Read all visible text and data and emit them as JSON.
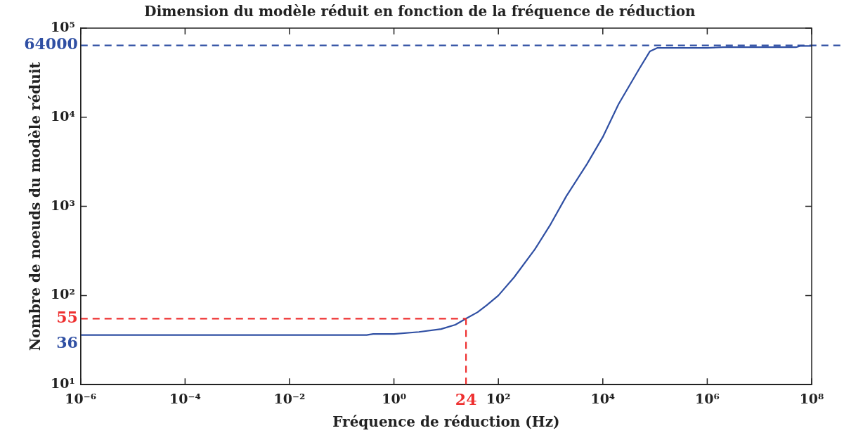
{
  "chart_data": {
    "type": "line",
    "title": "Dimension du modèle réduit en fonction de la fréquence de réduction",
    "xlabel": "Fréquence de réduction (Hz)",
    "ylabel": "Nombre de noeuds du modèle réduit",
    "log": "xy",
    "grid": false,
    "legend": false,
    "marker": "none",
    "line_style": "solid",
    "xlim": [
      1e-06,
      100000000.0
    ],
    "ylim": [
      10,
      100000
    ],
    "xticks": [
      {
        "value": 1e-06,
        "label": "10⁻⁶"
      },
      {
        "value": 0.0001,
        "label": "10⁻⁴"
      },
      {
        "value": 0.01,
        "label": "10⁻²"
      },
      {
        "value": 1,
        "label": "10⁰"
      },
      {
        "value": 100,
        "label": "10²"
      },
      {
        "value": 10000,
        "label": "10⁴"
      },
      {
        "value": 1000000,
        "label": "10⁶"
      },
      {
        "value": 100000000,
        "label": "10⁸"
      }
    ],
    "yticks": [
      {
        "value": 10,
        "label": "10¹"
      },
      {
        "value": 100,
        "label": "10²"
      },
      {
        "value": 1000,
        "label": "10³"
      },
      {
        "value": 10000,
        "label": "10⁴"
      },
      {
        "value": 100000,
        "label": "10⁵"
      }
    ],
    "series": [
      {
        "color": "#2f4fa3",
        "x": [
          1e-06,
          0.3,
          0.4,
          1,
          3,
          8,
          15,
          24,
          40,
          60,
          100,
          200,
          500,
          1000,
          2000,
          5000,
          10000,
          20000,
          50000,
          80000,
          110000,
          1000000,
          2000000,
          50000000,
          60000000,
          100000000
        ],
        "values": [
          36,
          36,
          37,
          37,
          39,
          42,
          47,
          55,
          65,
          78,
          100,
          160,
          330,
          630,
          1300,
          3000,
          6000,
          14000,
          35000,
          55000,
          60000,
          60000,
          61000,
          61000,
          63000,
          63000
        ]
      }
    ],
    "ref_lines": [
      {
        "axis": "y",
        "value": 64000,
        "label": "64000",
        "color": "#2f4fa3",
        "line_style": "dashed"
      },
      {
        "axis": "y",
        "value": 55,
        "label": "55",
        "color": "#ee3030",
        "line_style": "dashed"
      },
      {
        "axis": "x",
        "value": 24,
        "label": "24",
        "color": "#ee3030",
        "line_style": "dashed"
      }
    ],
    "annotations": [
      {
        "text": "36",
        "x": 1e-06,
        "y": 36
      }
    ]
  }
}
